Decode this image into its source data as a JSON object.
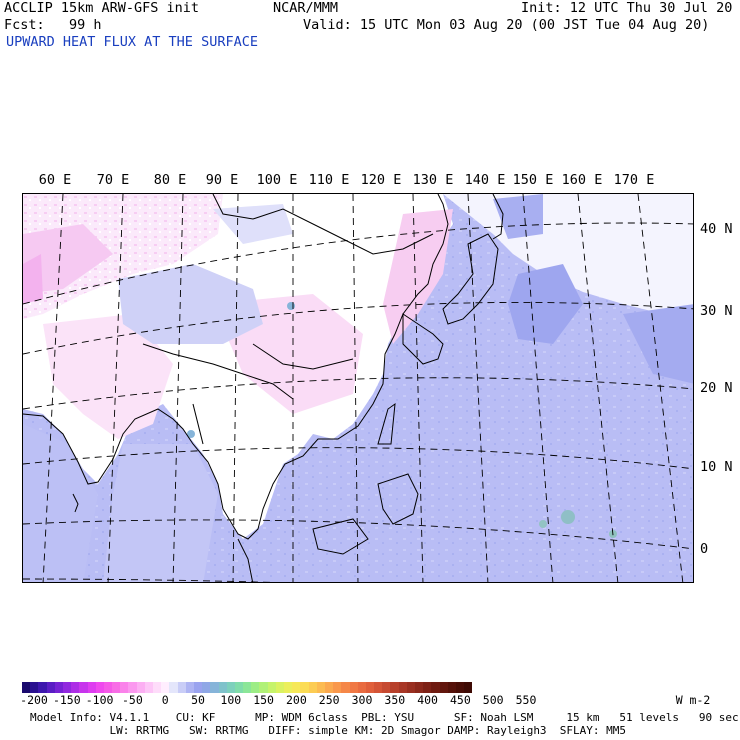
{
  "header": {
    "model": "ACCLIP 15km ARW-GFS init",
    "org": "NCAR/MMM",
    "init": "Init: 12 UTC Thu 30 Jul 20",
    "fcst": "Fcst:   99 h",
    "valid": "Valid: 15 UTC Mon 03 Aug 20 (00 JST Tue 04 Aug 20)",
    "field": "UPWARD HEAT FLUX AT THE SURFACE"
  },
  "map": {
    "lon_labels": [
      "60 E",
      "70 E",
      "80 E",
      "90 E",
      "100 E",
      "110 E",
      "120 E",
      "130 E",
      "140 E",
      "150 E",
      "160 E",
      "170 E"
    ],
    "lat_labels": [
      "40 N",
      "30 N",
      "20 N",
      "10 N",
      "0"
    ]
  },
  "colorbar": {
    "labels": [
      "-200",
      "-150",
      "-100",
      "-50",
      "0",
      "50",
      "100",
      "150",
      "200",
      "250",
      "300",
      "350",
      "400",
      "450",
      "500",
      "550"
    ],
    "units": "W m-2",
    "colors": [
      "#1a0a6e",
      "#2a1190",
      "#3d17ad",
      "#5a1dc4",
      "#7622d4",
      "#9128df",
      "#ad2ee6",
      "#c735ec",
      "#de3df0",
      "#ef49ee",
      "#f55ae8",
      "#f86de6",
      "#fa82ea",
      "#fb98ef",
      "#fcaff3",
      "#fdc6f7",
      "#fedcfa",
      "#ffeefe",
      "#e4e6fb",
      "#c9cdf7",
      "#aeb4f3",
      "#9aa3ef",
      "#8fa7e6",
      "#86b4d9",
      "#7fc2cb",
      "#7dd0bc",
      "#80dcaa",
      "#8be698",
      "#9ced86",
      "#b0f177",
      "#c6f36b",
      "#daf262",
      "#ebef5c",
      "#f6e858",
      "#fbdc55",
      "#fccc53",
      "#fcbb51",
      "#fba94f",
      "#f9984c",
      "#f58748",
      "#f07844",
      "#e96b40",
      "#e05f3b",
      "#d45436",
      "#c64a31",
      "#b7402b",
      "#a83726",
      "#992f20",
      "#8b281b",
      "#7d2116",
      "#6f1b11",
      "#62160d",
      "#551109",
      "#490d06",
      "#3e0a04"
    ]
  },
  "footer": {
    "line1": "Model Info: V4.1.1    CU: KF      MP: WDM 6class  PBL: YSU      SF: Noah LSM     15 km   51 levels   90 sec",
    "line2": "            LW: RRTMG   SW: RRTMG   DIFF: simple KM: 2D Smagor DAMP: Rayleigh3  SFLAY: MM5"
  }
}
